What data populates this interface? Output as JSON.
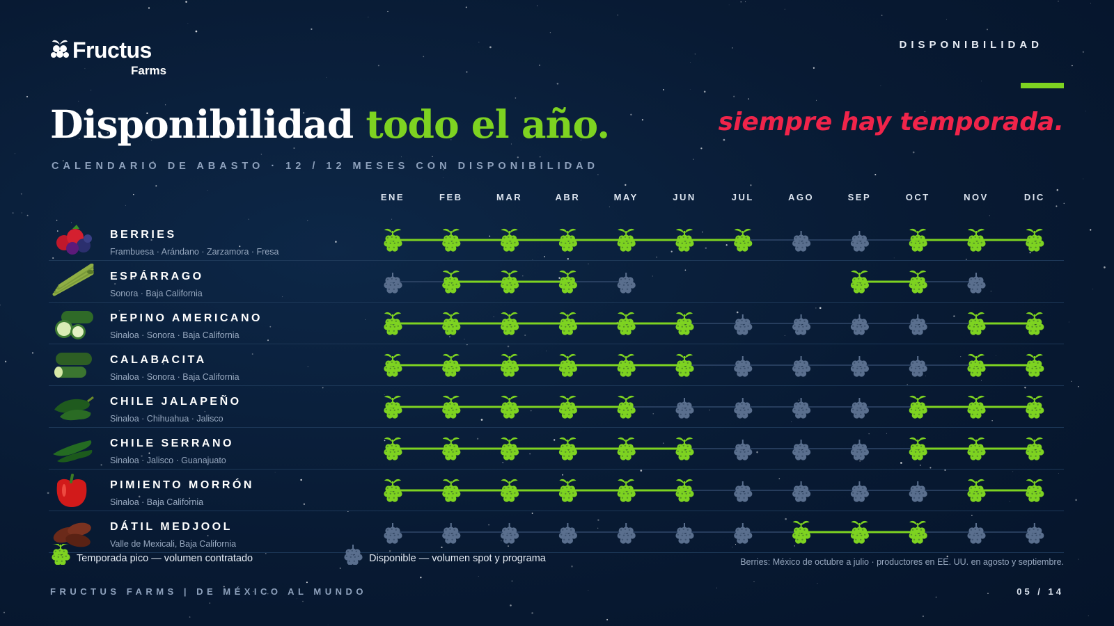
{
  "brand": {
    "name": "Fructus",
    "sub": "Farms"
  },
  "section_label": "DISPONIBILIDAD",
  "title": {
    "main": "Disponibilidad ",
    "highlight": "todo el año."
  },
  "tagline": "siempre hay temporada.",
  "subtitle": "CALENDARIO DE ABASTO  ·  12 / 12 MESES CON DISPONIBILIDAD",
  "months": [
    "ENE",
    "FEB",
    "MAR",
    "ABR",
    "MAY",
    "JUN",
    "JUL",
    "AGO",
    "SEP",
    "OCT",
    "NOV",
    "DIC"
  ],
  "products": [
    {
      "name": "BERRIES",
      "regions": "Frambuesa · Arándano · Zarzamora · Fresa",
      "image": "berries-icon",
      "status": [
        "peak",
        "peak",
        "peak",
        "peak",
        "peak",
        "peak",
        "peak",
        "available",
        "available",
        "peak",
        "peak",
        "peak"
      ]
    },
    {
      "name": "ESPÁRRAGO",
      "regions": "Sonora · Baja California",
      "image": "asparagus-icon",
      "status": [
        "available",
        "peak",
        "peak",
        "peak",
        "available",
        "none",
        "none",
        "none",
        "peak",
        "peak",
        "available",
        "none"
      ]
    },
    {
      "name": "PEPINO AMERICANO",
      "regions": "Sinaloa · Sonora · Baja California",
      "image": "cucumber-icon",
      "status": [
        "peak",
        "peak",
        "peak",
        "peak",
        "peak",
        "peak",
        "available",
        "available",
        "available",
        "available",
        "peak",
        "peak"
      ]
    },
    {
      "name": "CALABACITA",
      "regions": "Sinaloa · Sonora · Baja California",
      "image": "zucchini-icon",
      "status": [
        "peak",
        "peak",
        "peak",
        "peak",
        "peak",
        "peak",
        "available",
        "available",
        "available",
        "available",
        "peak",
        "peak"
      ]
    },
    {
      "name": "CHILE JALAPEÑO",
      "regions": "Sinaloa · Chihuahua · Jalisco",
      "image": "jalapeno-icon",
      "status": [
        "peak",
        "peak",
        "peak",
        "peak",
        "peak",
        "available",
        "available",
        "available",
        "available",
        "peak",
        "peak",
        "peak"
      ]
    },
    {
      "name": "CHILE SERRANO",
      "regions": "Sinaloa · Jalisco · Guanajuato",
      "image": "serrano-icon",
      "status": [
        "peak",
        "peak",
        "peak",
        "peak",
        "peak",
        "peak",
        "available",
        "available",
        "available",
        "peak",
        "peak",
        "peak"
      ]
    },
    {
      "name": "PIMIENTO MORRÓN",
      "regions": "Sinaloa · Baja California",
      "image": "bell-pepper-icon",
      "status": [
        "peak",
        "peak",
        "peak",
        "peak",
        "peak",
        "peak",
        "available",
        "available",
        "available",
        "available",
        "peak",
        "peak"
      ]
    },
    {
      "name": "DÁTIL MEDJOOL",
      "regions": "Valle de Mexicali, Baja California",
      "image": "dates-icon",
      "status": [
        "available",
        "available",
        "available",
        "available",
        "available",
        "available",
        "available",
        "peak",
        "peak",
        "peak",
        "available",
        "available"
      ]
    }
  ],
  "legend": {
    "peak": "Temporada pico — volumen contratado",
    "available": "Disponible — volumen spot y programa"
  },
  "note": "Berries: México de octubre a julio · productores en EE. UU. en agosto y septiembre.",
  "footer": "FRUCTUS FARMS   |   DE MÉXICO AL MUNDO",
  "page": "05 / 14",
  "colors": {
    "peak": "#7ed321",
    "available": "#5a6f8e",
    "accent": "#f0244a",
    "background": "#081a33"
  }
}
